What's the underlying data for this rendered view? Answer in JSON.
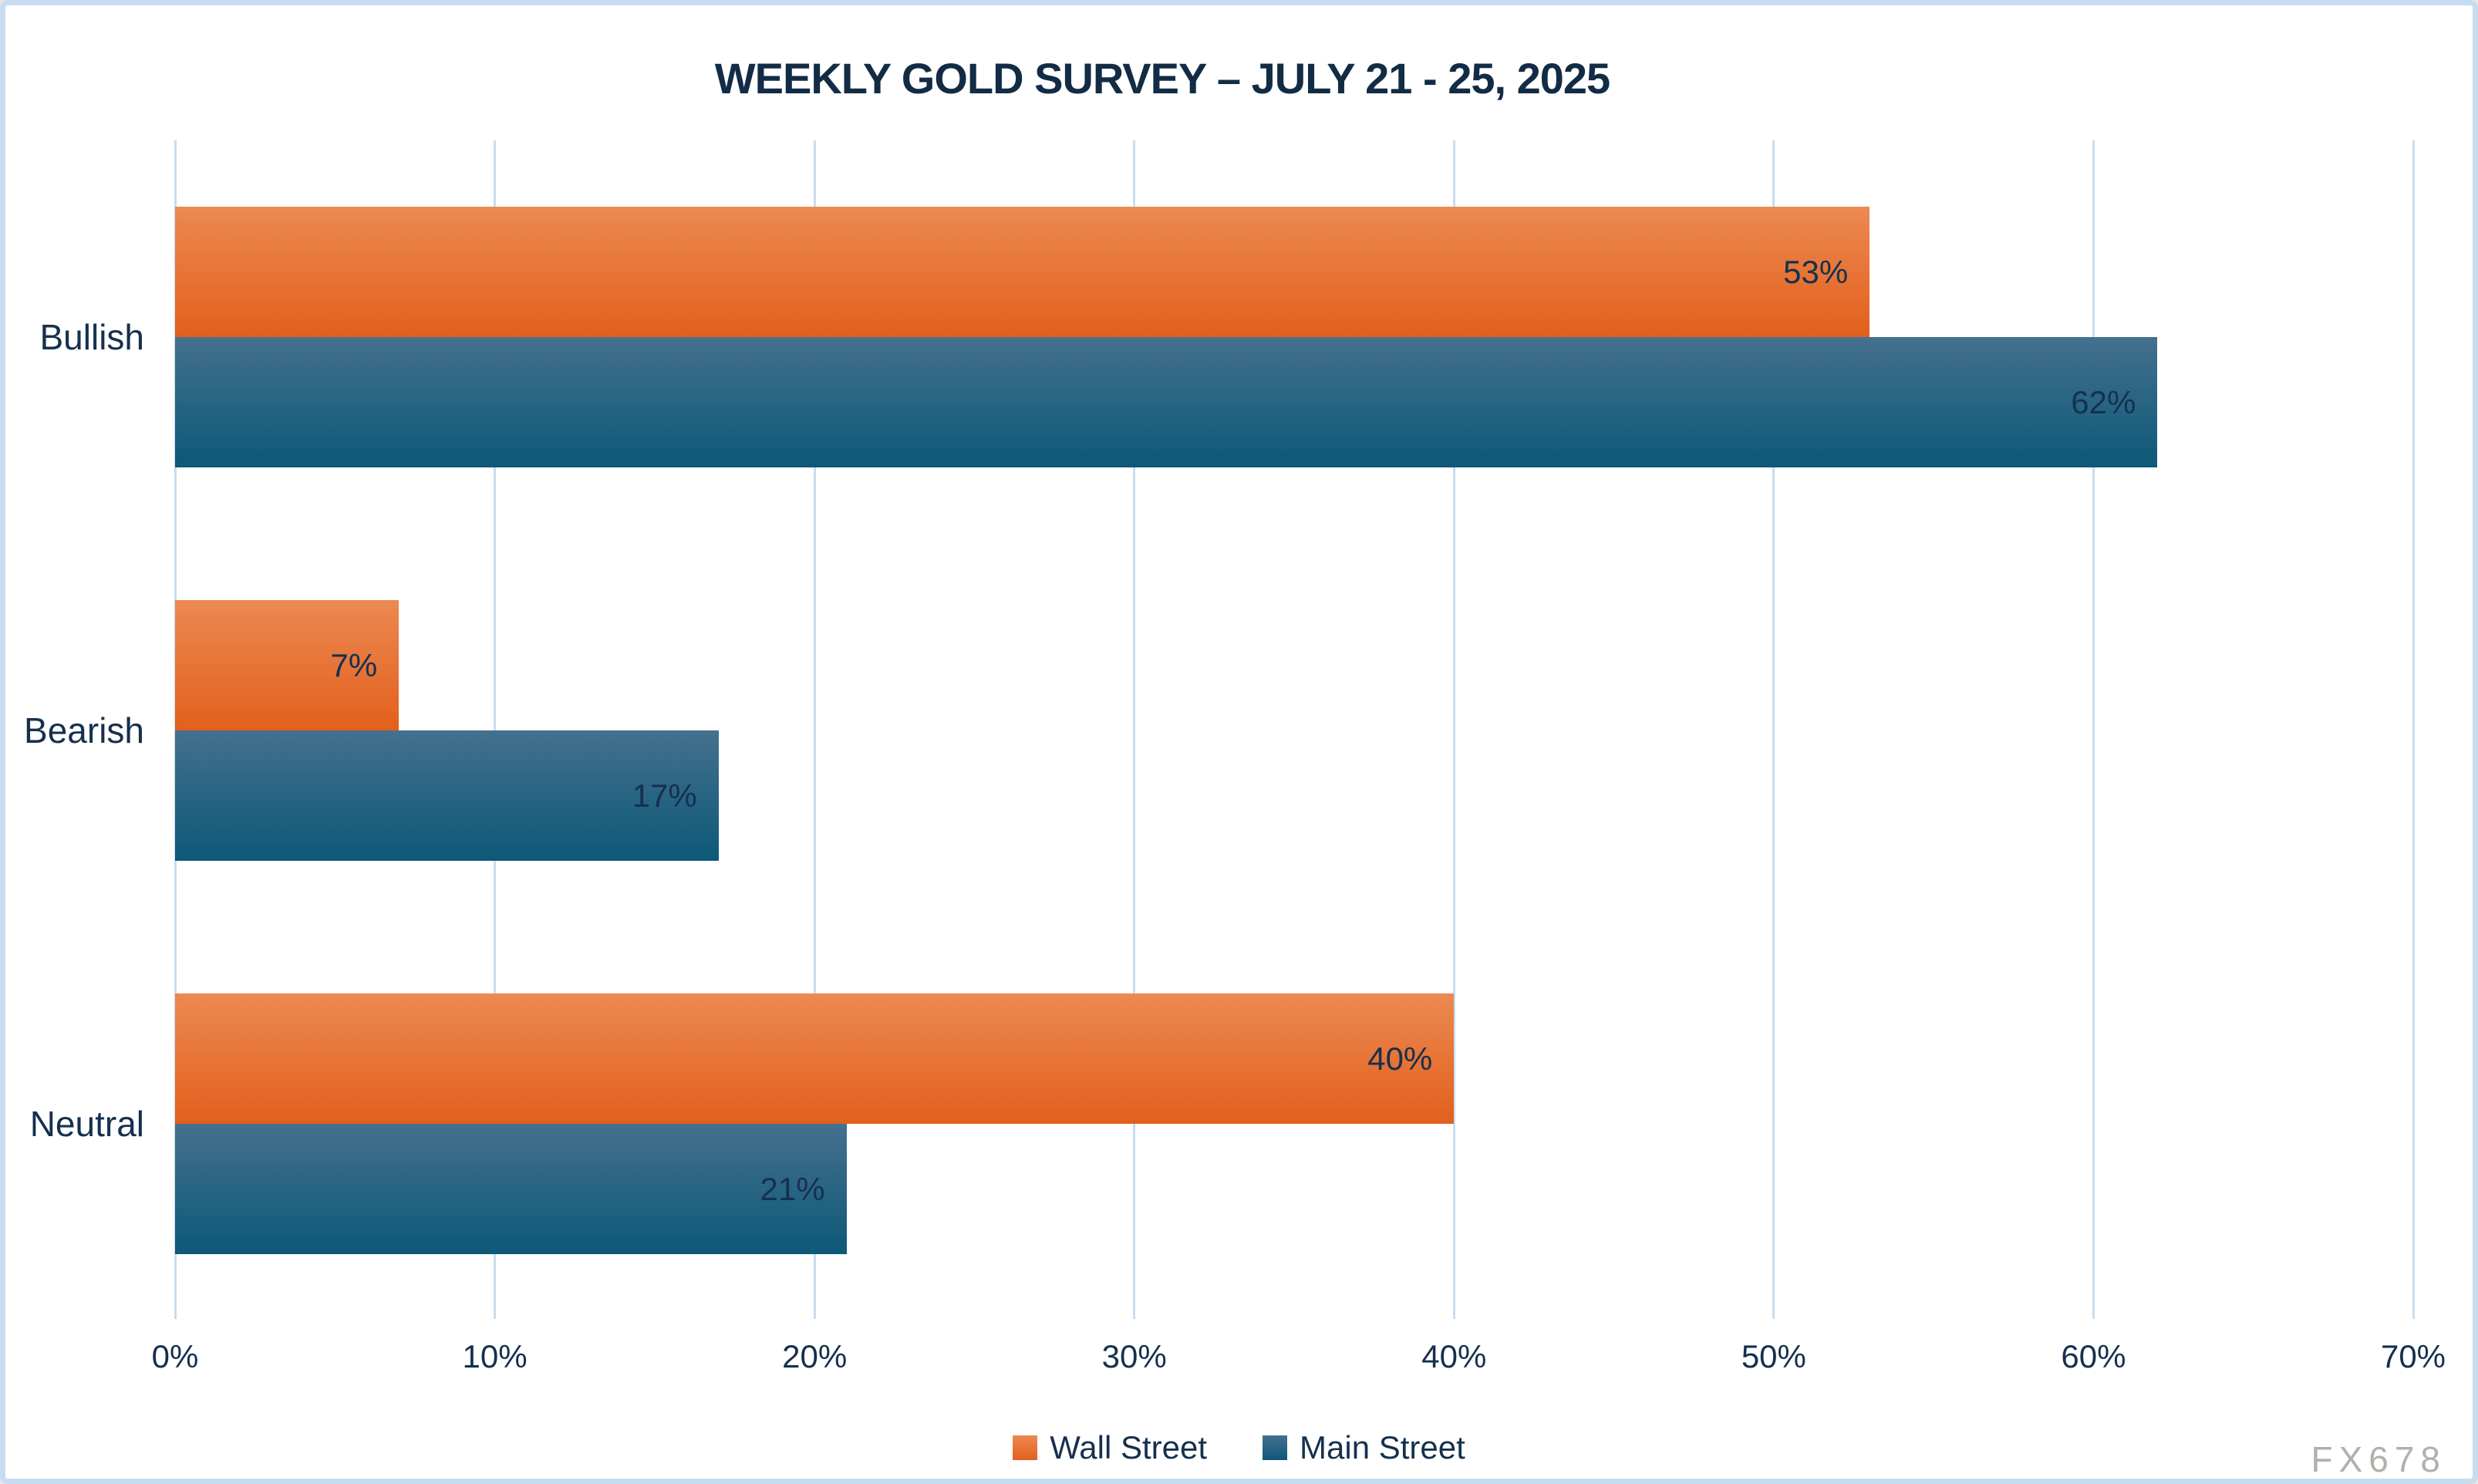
{
  "watermark": "FX678",
  "colors": {
    "background": "#FFFFFF",
    "border": "#C7DCF0",
    "gridline": "#C8DEF1",
    "title_text": "#132C45",
    "label_text": "#16304E",
    "watermark_text": "#B3B0AB",
    "wall_street_top": "#EC8952",
    "wall_street_bottom": "#E2601C",
    "main_street_top": "#44708E",
    "main_street_bottom": "#0D5878"
  },
  "chart_data": {
    "type": "bar",
    "orientation": "horizontal",
    "title": "WEEKLY GOLD SURVEY – JULY 21 - 25, 2025",
    "categories": [
      "Bullish",
      "Bearish",
      "Neutral"
    ],
    "series": [
      {
        "name": "Wall Street",
        "values": [
          53,
          7,
          40
        ]
      },
      {
        "name": "Main Street",
        "values": [
          62,
          17,
          21
        ]
      }
    ],
    "value_suffix": "%",
    "data_labels": "inside-end",
    "x_ticks": [
      "0%",
      "10%",
      "20%",
      "30%",
      "40%",
      "50%",
      "60%",
      "70%"
    ],
    "xlim": [
      0,
      70
    ],
    "xlabel": "",
    "ylabel": "",
    "grid": true,
    "legend_position": "bottom"
  }
}
